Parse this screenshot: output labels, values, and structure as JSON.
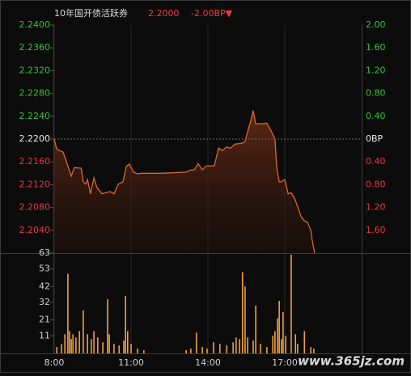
{
  "watermark": "www.365jz.com",
  "chart_data": [
    {
      "type": "line",
      "title": "10年国开债活跃券",
      "price_label": "2.2000",
      "change_label": "-2.00BP▼",
      "color": "#e0652a",
      "up_color": "#35c235",
      "down_color": "#e8383d",
      "flat_color": "#e6e6e6",
      "xlim": [
        "8:00",
        "20:00"
      ],
      "ylim": [
        2.2,
        2.24
      ],
      "yticks": [
        {
          "value": 2.24,
          "label": "2.2400"
        },
        {
          "value": 2.236,
          "label": "2.2360"
        },
        {
          "value": 2.232,
          "label": "2.2320"
        },
        {
          "value": 2.228,
          "label": "2.2280"
        },
        {
          "value": 2.224,
          "label": "2.2240"
        },
        {
          "value": 2.22,
          "label": "2.2200"
        },
        {
          "value": 2.216,
          "label": "2.2160"
        },
        {
          "value": 2.212,
          "label": "2.2120"
        },
        {
          "value": 2.208,
          "label": "2.2080"
        },
        {
          "value": 2.204,
          "label": "2.2040"
        }
      ],
      "y2lim": [
        -2,
        2
      ],
      "y2ticks": [
        {
          "value": 2,
          "label": "2.00"
        },
        {
          "value": 1.6,
          "label": "1.60"
        },
        {
          "value": 1.2,
          "label": "1.20"
        },
        {
          "value": 0.8,
          "label": "0.80"
        },
        {
          "value": 0.4,
          "label": "0.40"
        },
        {
          "value": 0,
          "label": "0BP"
        },
        {
          "value": -0.4,
          "label": "0.40"
        },
        {
          "value": -0.8,
          "label": "0.80"
        },
        {
          "value": -1.2,
          "label": "1.20"
        },
        {
          "value": -1.6,
          "label": "1.60"
        }
      ],
      "x": [
        "8:00",
        "8:06",
        "8:21",
        "8:40",
        "8:47",
        "9:03",
        "9:08",
        "9:14",
        "9:18",
        "9:25",
        "9:33",
        "9:40",
        "9:52",
        "10:01",
        "10:11",
        "10:20",
        "10:30",
        "10:41",
        "10:49",
        "10:56",
        "11:06",
        "11:15",
        "11:25",
        "12:12",
        "13:09",
        "13:20",
        "13:28",
        "13:37",
        "13:47",
        "13:56",
        "14:15",
        "14:25",
        "14:34",
        "14:44",
        "14:53",
        "15:03",
        "15:22",
        "15:27",
        "15:33",
        "15:40",
        "15:46",
        "15:52",
        "15:59",
        "16:09",
        "16:18",
        "16:28",
        "16:37",
        "16:41",
        "16:47",
        "16:52",
        "17:00",
        "17:08",
        "17:15",
        "17:23",
        "17:30",
        "17:38",
        "17:45",
        "17:53",
        "18:01",
        "18:04",
        "18:10"
      ],
      "values": [
        2.22,
        2.2182,
        2.2177,
        2.2135,
        2.215,
        2.2149,
        2.2125,
        2.2121,
        2.2129,
        2.2104,
        2.2132,
        2.2115,
        2.2104,
        2.2106,
        2.2108,
        2.2104,
        2.2121,
        2.2125,
        2.2152,
        2.2156,
        2.2142,
        2.2139,
        2.214,
        2.214,
        2.2142,
        2.2146,
        2.2146,
        2.2157,
        2.2146,
        2.2153,
        2.2153,
        2.2184,
        2.218,
        2.2186,
        2.2184,
        2.2191,
        2.2193,
        2.2196,
        2.2213,
        2.2231,
        2.225,
        2.2227,
        2.2227,
        2.2227,
        2.2228,
        2.2214,
        2.22,
        2.215,
        2.2125,
        2.2125,
        2.2129,
        2.2104,
        2.2106,
        2.2096,
        2.2082,
        2.2064,
        2.2057,
        2.2054,
        2.204,
        2.2023,
        2.2
      ]
    },
    {
      "type": "bar",
      "color": "#f0a040",
      "xlim": [
        "8:00",
        "20:00"
      ],
      "xticks": [
        "8:00",
        "11:00",
        "14:00",
        "17:00"
      ],
      "ylim": [
        0,
        63
      ],
      "yticks": [
        63,
        53,
        42,
        32,
        21,
        11
      ],
      "x": [
        "8:06",
        "8:17",
        "8:25",
        "8:32",
        "8:36",
        "8:40",
        "8:44",
        "8:51",
        "8:59",
        "9:08",
        "9:18",
        "9:27",
        "9:33",
        "9:42",
        "9:54",
        "10:05",
        "10:09",
        "10:20",
        "10:32",
        "10:43",
        "10:47",
        "10:52",
        "11:00",
        "11:15",
        "11:30",
        "13:09",
        "13:20",
        "13:33",
        "13:47",
        "13:58",
        "14:13",
        "14:28",
        "14:44",
        "14:59",
        "15:06",
        "15:14",
        "15:21",
        "15:27",
        "15:33",
        "15:46",
        "15:52",
        "16:03",
        "16:18",
        "16:32",
        "16:37",
        "16:43",
        "16:47",
        "16:52",
        "16:56",
        "17:02",
        "17:15",
        "17:25",
        "17:30",
        "17:46",
        "18:01",
        "18:08"
      ],
      "values": [
        4,
        6,
        12,
        50,
        14,
        9,
        12,
        10,
        14,
        27,
        12,
        9,
        14,
        10,
        7,
        34,
        12,
        6,
        5,
        8,
        36,
        14,
        6,
        3,
        2,
        2,
        3,
        13,
        4,
        3,
        7,
        6,
        5,
        7,
        10,
        9,
        51,
        42,
        10,
        8,
        30,
        6,
        4,
        11,
        14,
        22,
        33,
        9,
        26,
        11,
        62,
        12,
        6,
        14,
        4,
        3
      ]
    }
  ]
}
